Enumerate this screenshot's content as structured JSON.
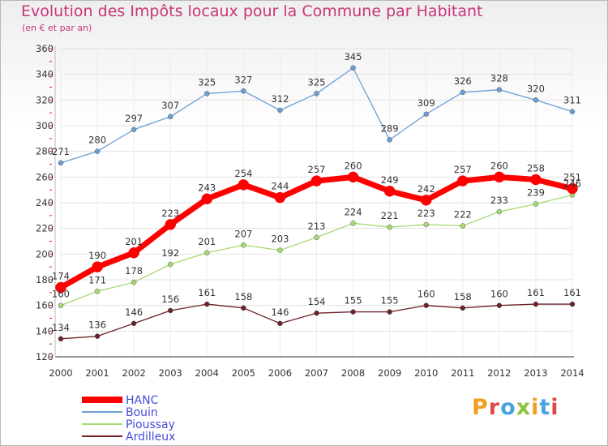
{
  "chart_data": {
    "type": "line",
    "title": "Evolution des Impôts locaux pour la Commune par Habitant",
    "subtitle": "(en € et par an)",
    "xlabel": "",
    "ylabel": "",
    "x": [
      "2000",
      "2001",
      "2002",
      "2003",
      "2004",
      "2005",
      "2006",
      "2007",
      "2008",
      "2009",
      "2010",
      "2011",
      "2012",
      "2013",
      "2014"
    ],
    "ylim": [
      120,
      360
    ],
    "yticks": [
      120,
      140,
      160,
      180,
      200,
      220,
      240,
      260,
      280,
      300,
      320,
      340,
      360
    ],
    "grid": true,
    "legend_position": "bottom-left",
    "series": [
      {
        "name": "HANC",
        "color": "#ff0000",
        "values": [
          174,
          190,
          201,
          223,
          243,
          254,
          244,
          257,
          260,
          249,
          242,
          257,
          260,
          258,
          251
        ]
      },
      {
        "name": "Bouin",
        "color": "#6b9ed4",
        "values": [
          271,
          280,
          297,
          307,
          325,
          327,
          312,
          325,
          345,
          289,
          309,
          326,
          328,
          320,
          311
        ]
      },
      {
        "name": "Pioussay",
        "color": "#a6da72",
        "values": [
          160,
          171,
          178,
          192,
          201,
          207,
          203,
          213,
          224,
          221,
          223,
          222,
          233,
          239,
          246
        ]
      },
      {
        "name": "Ardilleux",
        "color": "#6e2028",
        "values": [
          134,
          136,
          146,
          156,
          161,
          158,
          146,
          154,
          155,
          155,
          160,
          158,
          160,
          161,
          161
        ]
      }
    ]
  },
  "brand": {
    "logo_text": "Proxiti"
  }
}
